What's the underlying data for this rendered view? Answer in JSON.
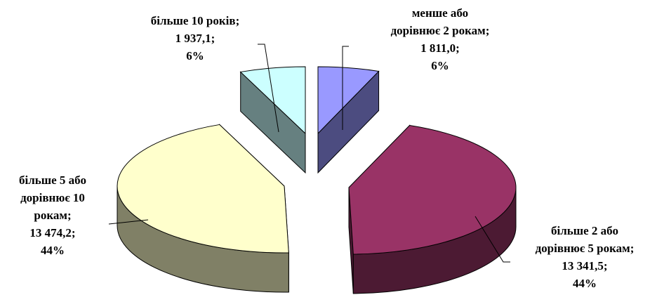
{
  "chart_data": {
    "type": "pie",
    "style": "3d-exploded",
    "slices": [
      {
        "label_lines": [
          "менше або",
          "дорівнює 2 рокам;"
        ],
        "value_text": "1 811,0;",
        "percent_text": "6%",
        "value": 1811.0,
        "color": "#9999FF",
        "side_color": "#4C4C80"
      },
      {
        "label_lines": [
          "більше 2 або",
          "дорівнює 5 рокам;"
        ],
        "value_text": "13 341,5;",
        "percent_text": "44%",
        "value": 13341.5,
        "color": "#993366",
        "side_color": "#4C1A33"
      },
      {
        "label_lines": [
          "більше 5 або",
          "дорівнює 10",
          "рокам;"
        ],
        "value_text": "13 474,2;",
        "percent_text": "44%",
        "value": 13474.2,
        "color": "#FFFFCC",
        "side_color": "#808066"
      },
      {
        "label_lines": [
          "більше 10 років;"
        ],
        "value_text": "1 937,1;",
        "percent_text": "6%",
        "value": 1937.1,
        "color": "#CCFFFF",
        "side_color": "#668080"
      }
    ]
  }
}
